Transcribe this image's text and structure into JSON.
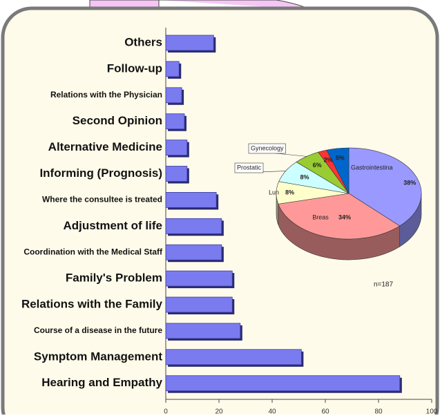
{
  "chart_data": [
    {
      "type": "bar",
      "orientation": "horizontal",
      "categories": [
        "Others",
        "Follow-up",
        "Relations with the Physician",
        "Second Opinion",
        "Alternative Medicine",
        "Informing (Prognosis)",
        "Where the consultee is treated",
        "Adjustment of life",
        "Coordination with the Medical Staff",
        "Family's Problem",
        "Relations with the Family",
        "Course of a disease in the future",
        "Symptom Management",
        "Hearing  and Empathy"
      ],
      "values": [
        18,
        5,
        6,
        7,
        8,
        8,
        19,
        21,
        21,
        25,
        25,
        28,
        51,
        88
      ],
      "color": "#7b7bf0",
      "xlim": [
        0,
        100
      ],
      "xticks": [
        0,
        20,
        40,
        60,
        80,
        100
      ]
    },
    {
      "type": "pie",
      "categories": [
        "Gastrointestina",
        "Breas",
        "Lun",
        "Prostatic",
        "Gynecology",
        null,
        null
      ],
      "values": [
        38,
        34,
        8,
        8,
        6,
        2,
        5
      ],
      "value_labels": [
        "38%",
        "34%",
        "8%",
        "8%",
        "6%",
        "2%",
        "5%"
      ],
      "colors": [
        "#9999ff",
        "#ff9999",
        "#ffffcc",
        "#ccffff",
        "#99cc33",
        "#ff3333",
        "#0066cc"
      ],
      "annotation": "n=187"
    }
  ]
}
